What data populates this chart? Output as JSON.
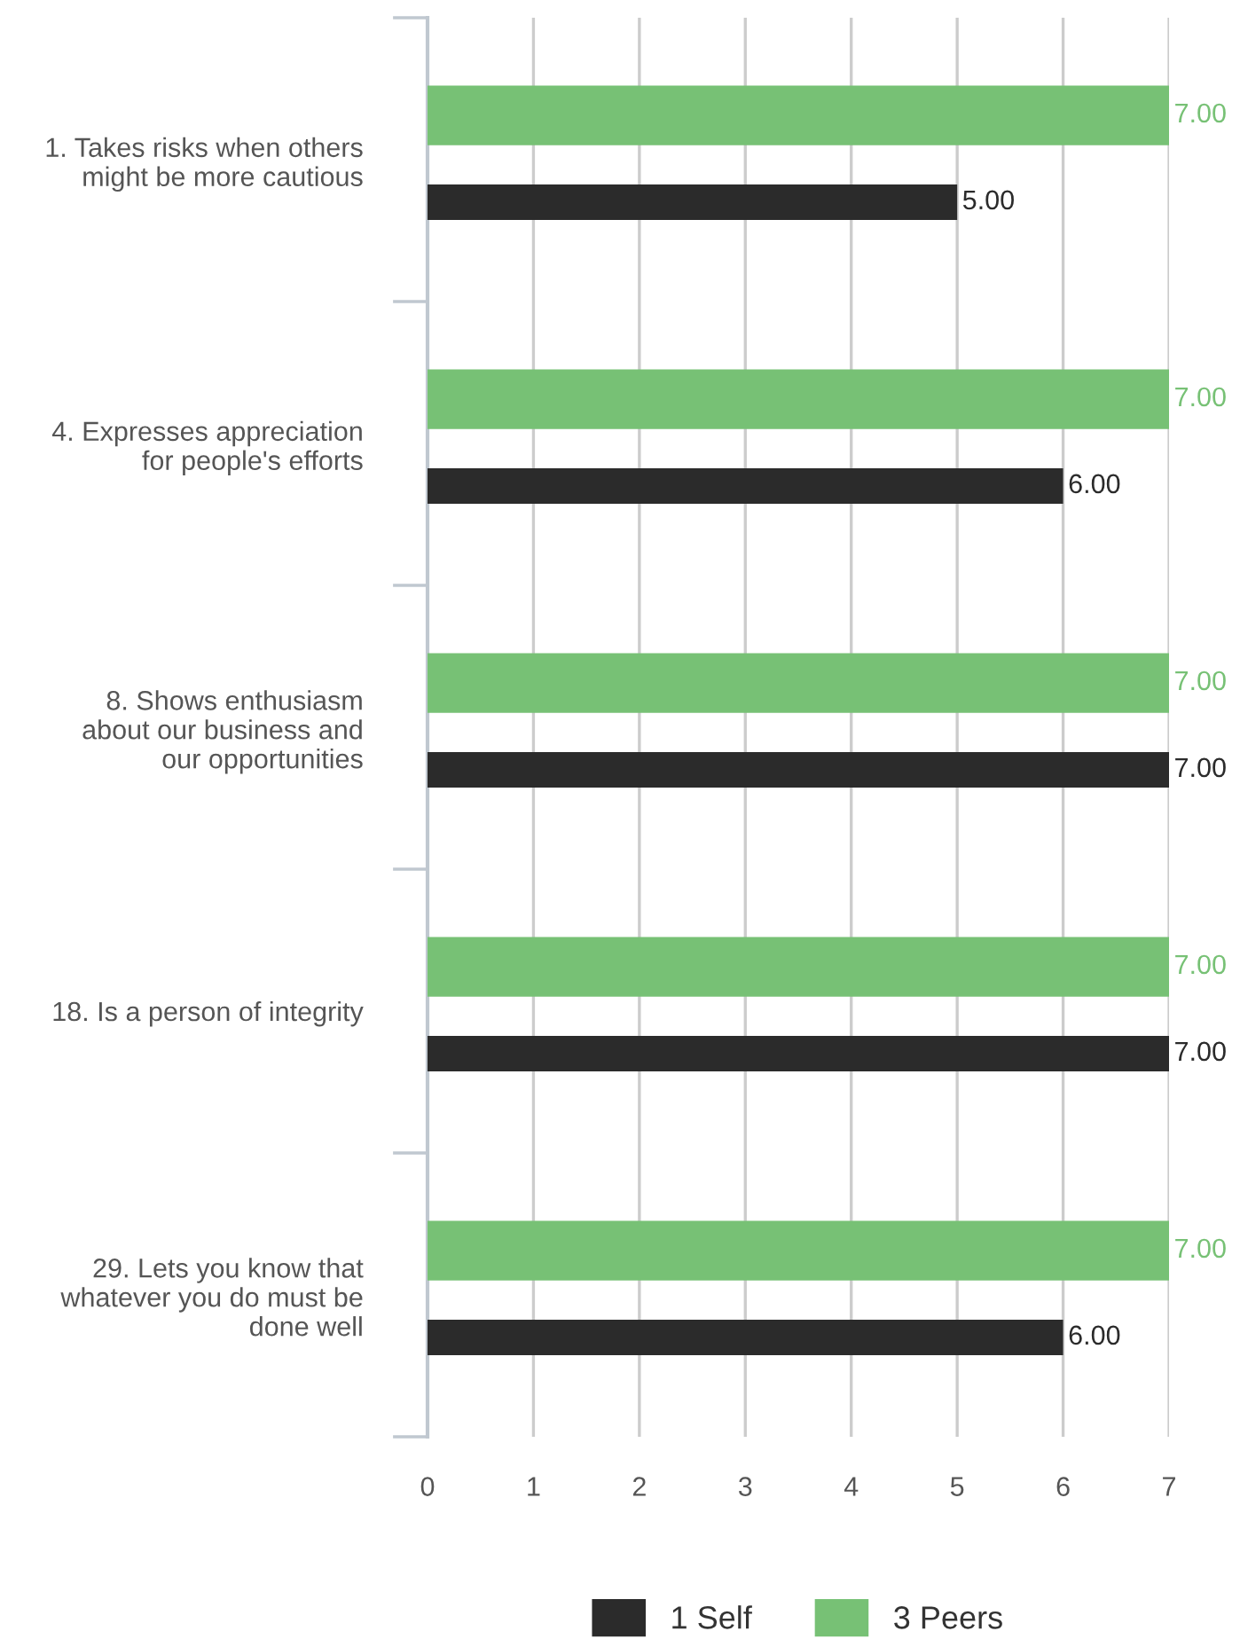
{
  "chart_data": {
    "type": "bar",
    "orientation": "horizontal",
    "categories": [
      "1. Takes risks when others\nmight be more cautious",
      "4. Expresses appreciation\nfor people's efforts",
      "8. Shows enthusiasm\nabout our business and\nour opportunities",
      "18. Is a person of integrity",
      "29. Lets you know that\nwhatever you do must be\ndone well"
    ],
    "series": [
      {
        "name": "1 Self",
        "color": "#2b2b2b",
        "values": [
          5,
          6,
          7,
          7,
          6
        ],
        "value_labels": [
          "5.00",
          "6.00",
          "7.00",
          "7.00",
          "6.00"
        ]
      },
      {
        "name": "3 Peers",
        "color": "#77c175",
        "values": [
          7,
          7,
          7,
          7,
          7
        ],
        "value_labels": [
          "7.00",
          "7.00",
          "7.00",
          "7.00",
          "7.00"
        ]
      }
    ],
    "xlim": [
      0,
      7
    ],
    "xticks": [
      0,
      1,
      2,
      3,
      4,
      5,
      6,
      7
    ],
    "grid": "x",
    "legend": "bottom"
  }
}
